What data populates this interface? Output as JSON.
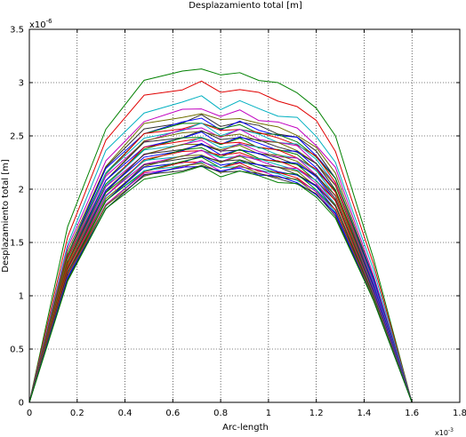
{
  "chart_data": {
    "type": "line",
    "title": "Desplazamiento total [m]",
    "xlabel": "Arc-length",
    "ylabel": "Desplazamiento total [m]",
    "x_exponent_label": "x10",
    "x_exponent": "-3",
    "y_exponent_label": "x10",
    "y_exponent": "-6",
    "xlim": [
      0,
      1.8
    ],
    "ylim": [
      0,
      3.5
    ],
    "x_ticks": [
      "0",
      "0.2",
      "0.4",
      "0.6",
      "0.8",
      "1",
      "1.2",
      "1.4",
      "1.6",
      "1.8"
    ],
    "y_ticks": [
      "0",
      "0.5",
      "1",
      "1.5",
      "2",
      "2.5",
      "3",
      "3.5"
    ],
    "grid": true,
    "x": [
      0,
      0.16,
      0.32,
      0.48,
      0.64,
      0.72,
      0.8,
      0.88,
      0.96,
      1.04,
      1.12,
      1.2,
      1.28,
      1.44,
      1.6
    ],
    "profile": [
      0,
      0.52,
      0.82,
      0.955,
      0.985,
      1.0,
      0.968,
      0.985,
      0.962,
      0.945,
      0.928,
      0.875,
      0.79,
      0.43,
      0
    ],
    "series": [
      {
        "color": "#008000",
        "peak": 3.15
      },
      {
        "color": "#e00000",
        "peak": 3.0
      },
      {
        "color": "#00b0c0",
        "peak": 2.86
      },
      {
        "color": "#c000c0",
        "peak": 2.77
      },
      {
        "color": "#707000",
        "peak": 2.72
      },
      {
        "color": "#303030",
        "peak": 2.68
      },
      {
        "color": "#0000ff",
        "peak": 2.66
      },
      {
        "color": "#008000",
        "peak": 2.64
      },
      {
        "color": "#e00000",
        "peak": 2.62
      },
      {
        "color": "#00b0c0",
        "peak": 2.6
      },
      {
        "color": "#c000c0",
        "peak": 2.58
      },
      {
        "color": "#707000",
        "peak": 2.56
      },
      {
        "color": "#303030",
        "peak": 2.54
      },
      {
        "color": "#0000ff",
        "peak": 2.52
      },
      {
        "color": "#008000",
        "peak": 2.5
      },
      {
        "color": "#e00000",
        "peak": 2.49
      },
      {
        "color": "#00b0c0",
        "peak": 2.47
      },
      {
        "color": "#c000c0",
        "peak": 2.45
      },
      {
        "color": "#707000",
        "peak": 2.44
      },
      {
        "color": "#303030",
        "peak": 2.42
      },
      {
        "color": "#0000ff",
        "peak": 2.41
      },
      {
        "color": "#008000",
        "peak": 2.39
      },
      {
        "color": "#e00000",
        "peak": 2.38
      },
      {
        "color": "#00b0c0",
        "peak": 2.36
      },
      {
        "color": "#c000c0",
        "peak": 2.35
      },
      {
        "color": "#707000",
        "peak": 2.33
      },
      {
        "color": "#303030",
        "peak": 2.32
      },
      {
        "color": "#0000ff",
        "peak": 2.3
      },
      {
        "color": "#008000",
        "peak": 2.29
      },
      {
        "color": "#e00000",
        "peak": 2.27
      },
      {
        "color": "#00b0c0",
        "peak": 2.26
      },
      {
        "color": "#c000c0",
        "peak": 2.25
      },
      {
        "color": "#707000",
        "peak": 2.24
      },
      {
        "color": "#0000ff",
        "peak": 2.23
      },
      {
        "color": "#303030",
        "peak": 2.22
      },
      {
        "color": "#008000",
        "peak": 2.2
      }
    ]
  }
}
